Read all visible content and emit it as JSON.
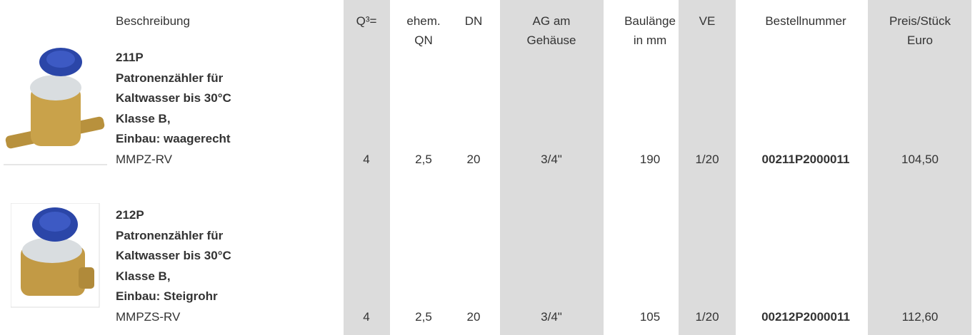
{
  "header": {
    "columns": [
      [
        "Beschreibung"
      ],
      [
        "Q³="
      ],
      [
        "ehem.",
        "QN"
      ],
      [
        "DN"
      ],
      [
        "AG am",
        "Gehäuse"
      ],
      [
        "Baulänge",
        "in mm"
      ],
      [
        "VE"
      ],
      [
        "Bestellnummer"
      ],
      [
        "Preis/Stück",
        "Euro"
      ]
    ]
  },
  "table": {
    "rows": [
      {
        "title": [
          "211P",
          "Patronenzähler für",
          "Kaltwasser bis 30°C",
          "Klasse B,",
          "Einbau: waagerecht"
        ],
        "code": "MMPZ-RV",
        "cells": [
          "4",
          "2,5",
          "20",
          "3/4\"",
          "190",
          "1/20",
          "00211P2000011",
          "104,50"
        ]
      },
      {
        "title": [
          "212P",
          "Patronenzähler für",
          "Kaltwasser bis 30°C",
          "Klasse B,",
          "Einbau: Steigrohr"
        ],
        "code": "MMPZS-RV",
        "cells": [
          "4",
          "2,5",
          "20",
          "3/4\"",
          "105",
          "1/20",
          "00212P2000011",
          "112,60"
        ]
      }
    ]
  }
}
